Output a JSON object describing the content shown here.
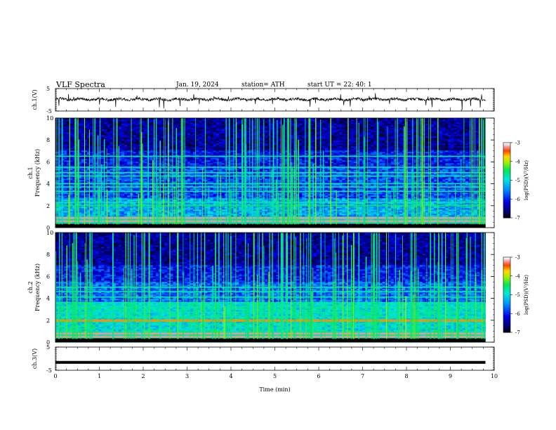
{
  "header": {
    "title": "VLF  Spectra",
    "date": "Jan.  19,  2024",
    "station": "station= ATH",
    "start": "start  UT  =    22: 40: 1"
  },
  "chart_data": [
    {
      "type": "line",
      "title": "",
      "xlabel": "",
      "ylabel": "ch.1(V)",
      "xlim": [
        0,
        10
      ],
      "ylim": [
        -5,
        5
      ],
      "yticks": [
        "5",
        "-5"
      ],
      "series": [
        {
          "x_range": [
            0,
            9.8
          ],
          "level": 0.2,
          "style": "noisy waveform, amplitude about ±1 V with sparse negative spikes"
        }
      ]
    },
    {
      "type": "heatmap",
      "title": "",
      "xlabel": "",
      "ylabel": "ch.1\nFrequency (kHz)",
      "xlim": [
        0,
        10
      ],
      "ylim": [
        0,
        10
      ],
      "yticks": [
        "0",
        "2",
        "4",
        "6",
        "8",
        "10"
      ],
      "data_x_range": [
        0,
        9.8
      ],
      "colorbar": {
        "label": "log(PSD)(V²/Hz)",
        "ticks": [
          "-3",
          "-4",
          "-5",
          "-6",
          "-7"
        ],
        "range": [
          -7,
          -3
        ]
      },
      "bands_khz": [
        0.3,
        0.6,
        0.9,
        2.0,
        2.3,
        3.3,
        3.7,
        4.0,
        4.7,
        5.0,
        5.5,
        6.5
      ],
      "sferic_density": "high, broadband impulses up to 10 kHz"
    },
    {
      "type": "heatmap",
      "title": "",
      "xlabel": "",
      "ylabel": "ch.2\nFrequency (kHz)",
      "xlim": [
        0,
        10
      ],
      "ylim": [
        0,
        10
      ],
      "yticks": [
        "0",
        "2",
        "4",
        "6",
        "8",
        "10"
      ],
      "data_x_range": [
        0,
        9.8
      ],
      "colorbar": {
        "label": "log(PSD)(V²/Hz)",
        "ticks": [
          "-3",
          "-4",
          "-5",
          "-6",
          "-7"
        ],
        "range": [
          -7,
          -3
        ]
      },
      "bands_khz": [
        0.2,
        0.5,
        0.8,
        1.9,
        2.0,
        2.3,
        2.7,
        3.2,
        3.6,
        4.1,
        4.6,
        5.0
      ],
      "sferic_density": "high, broadband impulses up to 10 kHz"
    },
    {
      "type": "line",
      "title": "",
      "xlabel": "Time  (min)",
      "ylabel": "ch.3(V)",
      "xlim": [
        0,
        10
      ],
      "ylim": [
        -5,
        5
      ],
      "yticks": [
        "5",
        "-5"
      ],
      "xticks": [
        "0",
        "1",
        "2",
        "3",
        "4",
        "5",
        "6",
        "7",
        "8",
        "9",
        "10"
      ],
      "series": [
        {
          "x_range": [
            0,
            9.8
          ],
          "level": -1.6,
          "style": "thick flat trace"
        }
      ]
    }
  ]
}
